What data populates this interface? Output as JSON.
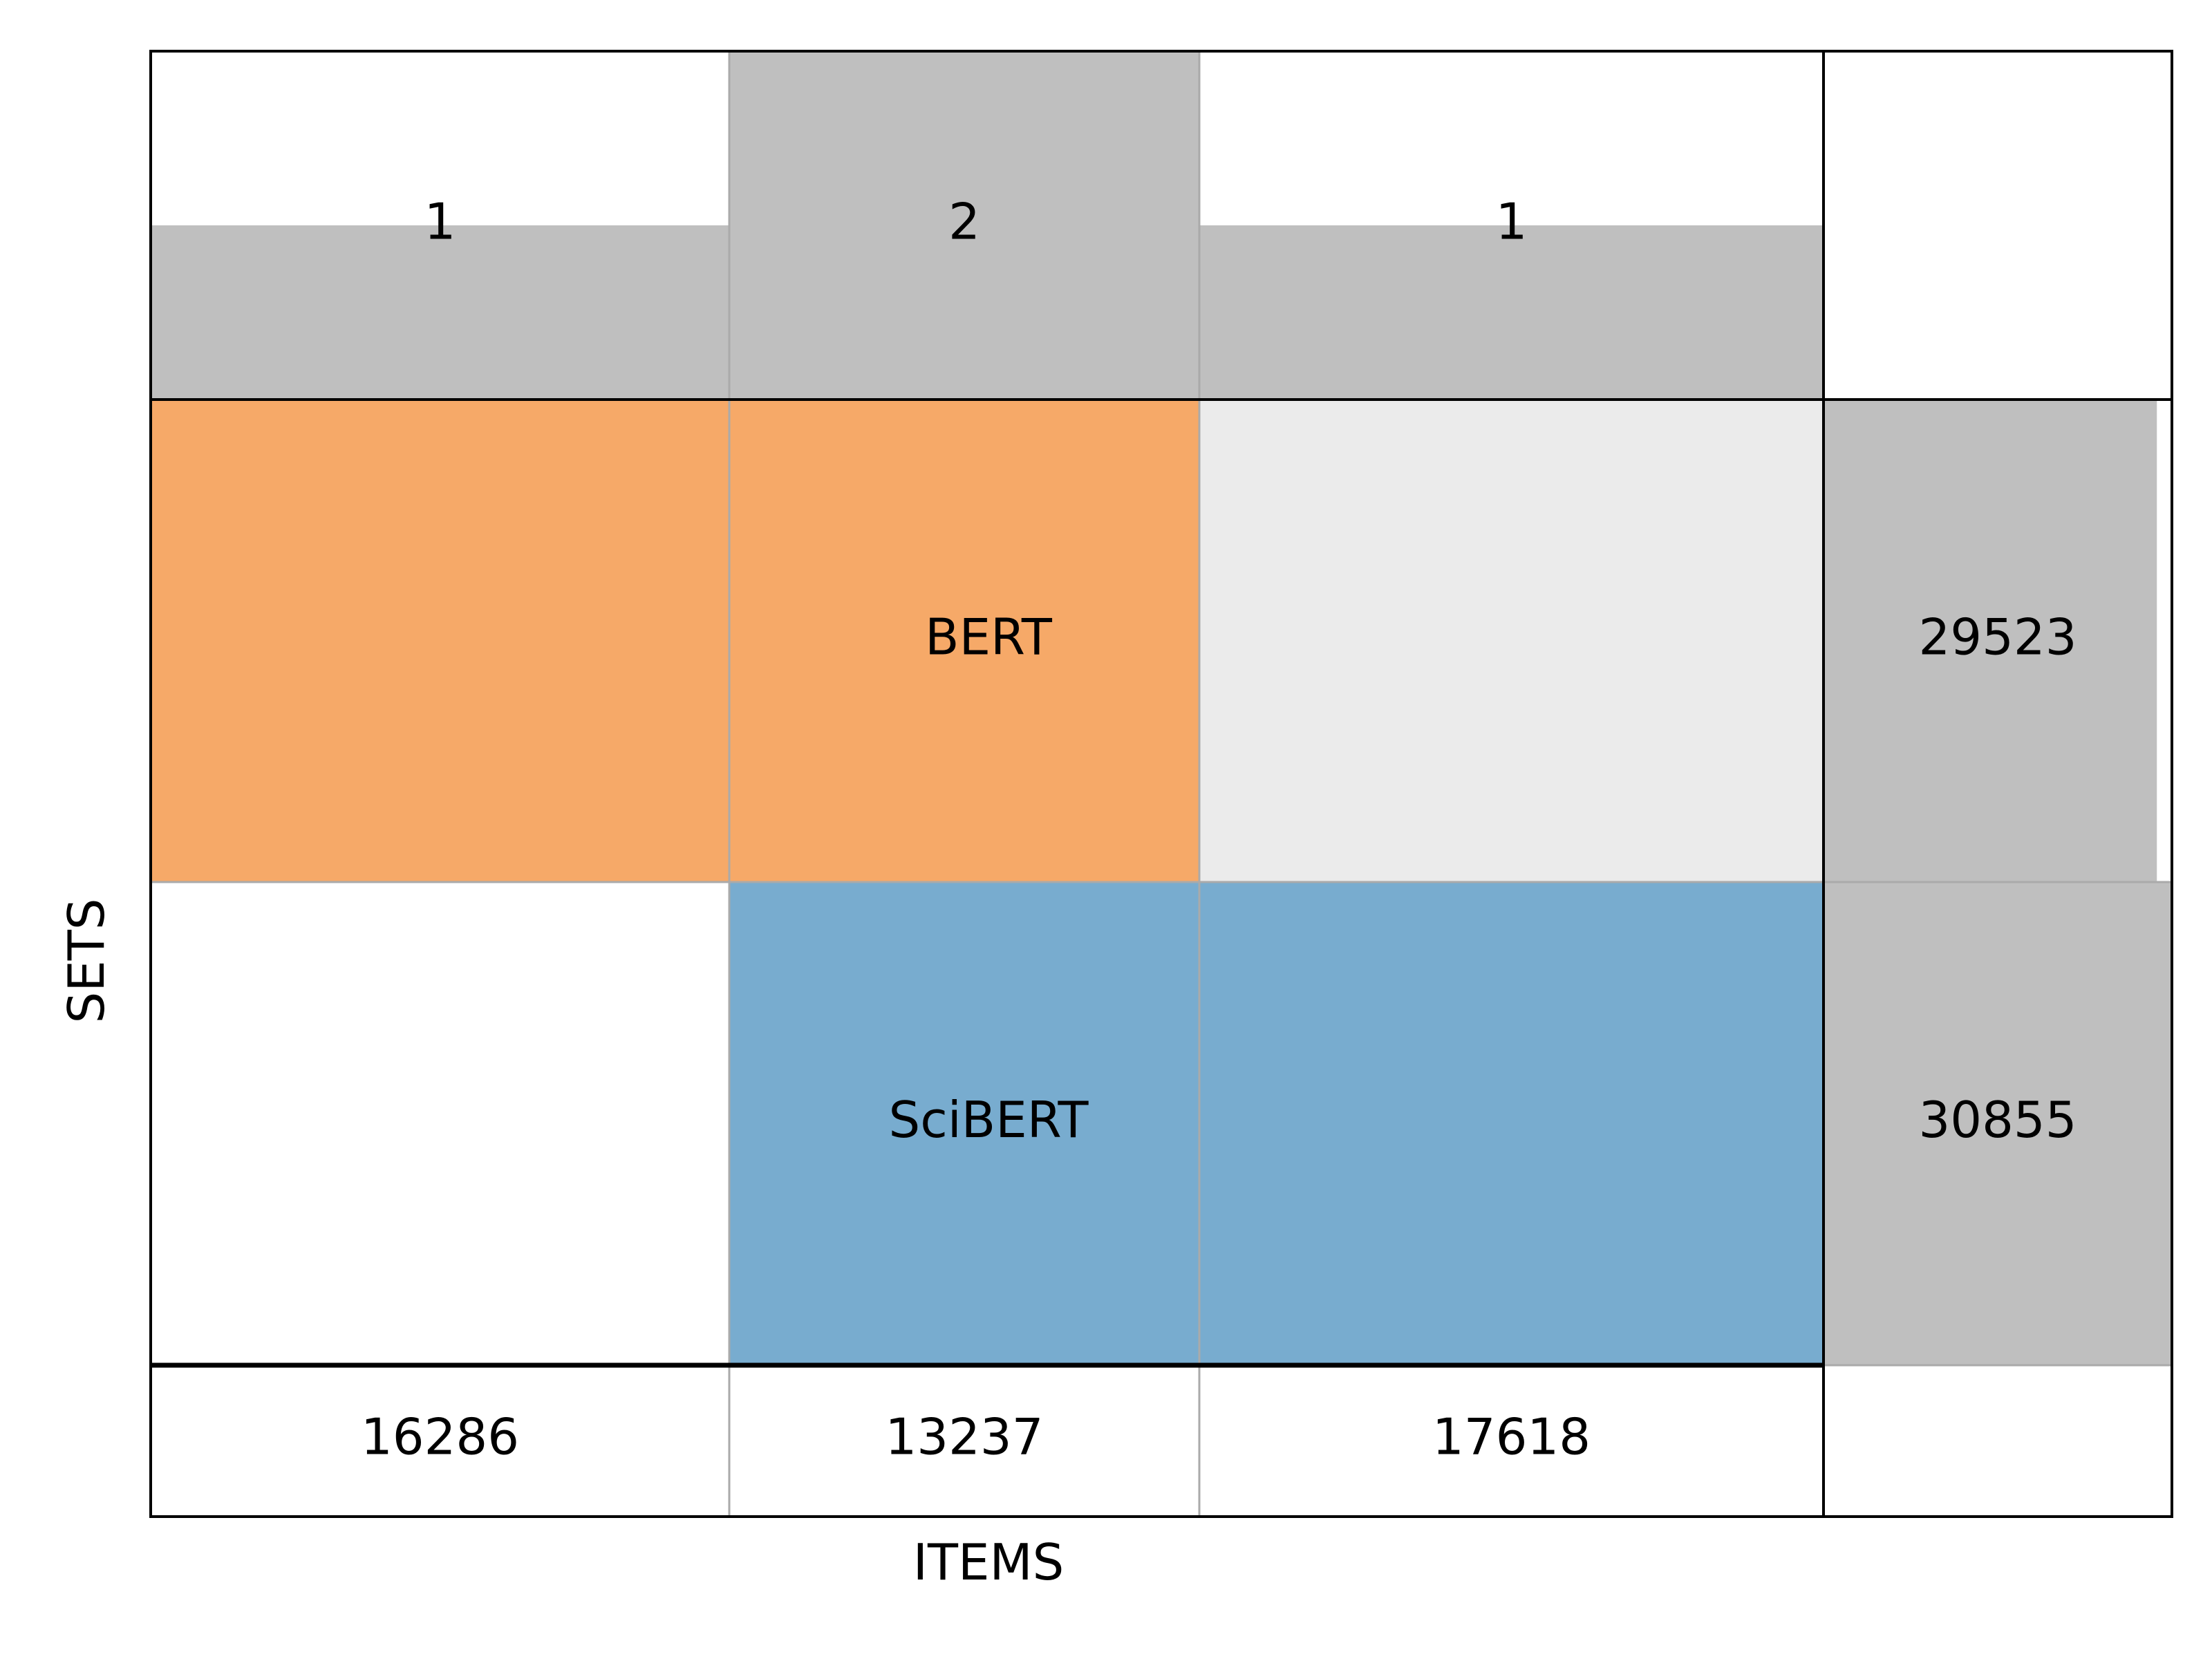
{
  "chart_data": {
    "type": "heatmap",
    "xlabel": "ITEMS",
    "ylabel": "SETS",
    "columns": [
      {
        "set_count": 1,
        "item_count": 16286,
        "members": [
          "BERT"
        ]
      },
      {
        "set_count": 2,
        "item_count": 13237,
        "members": [
          "BERT",
          "SciBERT"
        ]
      },
      {
        "set_count": 1,
        "item_count": 17618,
        "members": [
          "SciBERT"
        ]
      }
    ],
    "sets": [
      {
        "name": "BERT",
        "total": 29523,
        "color": "#f6a968"
      },
      {
        "name": "SciBERT",
        "total": 30855,
        "color": "#78accf"
      }
    ],
    "header_max": 2,
    "set_total_max": 30855,
    "colors": {
      "bar": "#bfbfbf",
      "empty_cell": "#ebebeb",
      "grid": "#aaaaaa",
      "frame": "#000000"
    }
  }
}
